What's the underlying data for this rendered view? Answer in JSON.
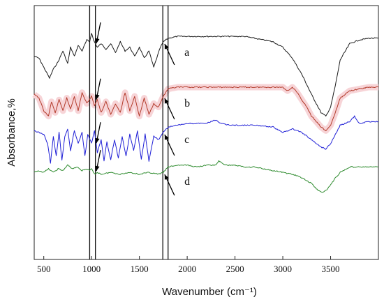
{
  "chart_data": {
    "type": "line",
    "xlabel": "Wavenumber (cm⁻¹)",
    "ylabel": "Absorbance,%",
    "xlim": [
      400,
      4000
    ],
    "x_ticks": [
      500,
      1000,
      1500,
      2000,
      2500,
      3000,
      3500
    ],
    "y_ticks_shown": false,
    "grid": false,
    "legend": "none",
    "reference_lines_x": [
      980,
      1040,
      1745,
      1800
    ],
    "arrow_targets_x": [
      1050,
      1750
    ],
    "series": [
      {
        "label": "a",
        "color": "#1a1a1a",
        "band": null,
        "x": [
          400,
          450,
          500,
          530,
          560,
          600,
          650,
          700,
          750,
          780,
          820,
          860,
          900,
          950,
          980,
          1000,
          1020,
          1040,
          1060,
          1100,
          1150,
          1200,
          1250,
          1300,
          1350,
          1400,
          1450,
          1500,
          1550,
          1600,
          1650,
          1700,
          1720,
          1750,
          1800,
          1900,
          2000,
          2100,
          2200,
          2300,
          2400,
          2500,
          2600,
          2700,
          2800,
          2900,
          3000,
          3100,
          3200,
          3300,
          3400,
          3450,
          3500,
          3550,
          3600,
          3700,
          3800,
          3900,
          4000
        ],
        "y": [
          5.6,
          5.55,
          5.3,
          5.15,
          5.0,
          5.25,
          5.45,
          5.75,
          5.4,
          5.85,
          5.6,
          5.9,
          5.75,
          6.05,
          6.0,
          6.25,
          6.05,
          5.95,
          5.85,
          5.95,
          5.8,
          5.95,
          5.7,
          6.0,
          5.75,
          5.85,
          5.6,
          5.85,
          5.55,
          5.75,
          5.3,
          5.7,
          5.85,
          6.0,
          6.1,
          6.15,
          6.15,
          6.15,
          6.15,
          6.15,
          6.15,
          6.15,
          6.15,
          6.1,
          6.05,
          6.0,
          5.85,
          5.55,
          5.1,
          4.55,
          4.05,
          3.95,
          4.2,
          4.8,
          5.5,
          5.95,
          6.05,
          6.1,
          6.1
        ]
      },
      {
        "label": "b",
        "color": "#b23a2a",
        "band": "#f7d4d7",
        "x": [
          400,
          450,
          500,
          550,
          580,
          620,
          660,
          700,
          740,
          780,
          820,
          860,
          900,
          950,
          1000,
          1030,
          1060,
          1100,
          1150,
          1200,
          1250,
          1300,
          1350,
          1400,
          1450,
          1500,
          1550,
          1600,
          1650,
          1700,
          1750,
          1800,
          1900,
          2000,
          2200,
          2400,
          2600,
          2800,
          2900,
          3000,
          3050,
          3100,
          3150,
          3200,
          3250,
          3300,
          3350,
          3400,
          3450,
          3500,
          3550,
          3600,
          3700,
          3800,
          3900,
          4000
        ],
        "y": [
          4.55,
          4.45,
          4.1,
          3.95,
          4.35,
          4.05,
          4.4,
          4.1,
          4.45,
          4.15,
          4.5,
          4.1,
          4.6,
          4.3,
          4.5,
          4.25,
          4.4,
          4.05,
          4.35,
          4.0,
          4.3,
          4.05,
          4.6,
          4.1,
          4.5,
          3.95,
          4.45,
          4.0,
          4.3,
          4.2,
          4.5,
          4.7,
          4.75,
          4.75,
          4.75,
          4.75,
          4.75,
          4.75,
          4.75,
          4.75,
          4.65,
          4.75,
          4.6,
          4.4,
          4.2,
          3.95,
          3.8,
          3.65,
          3.55,
          3.7,
          4.05,
          4.45,
          4.65,
          4.7,
          4.75,
          4.75
        ]
      },
      {
        "label": "c",
        "color": "#1f1fd6",
        "band": null,
        "x": [
          400,
          450,
          500,
          540,
          570,
          600,
          630,
          660,
          690,
          720,
          750,
          780,
          820,
          860,
          900,
          930,
          960,
          1000,
          1030,
          1060,
          1100,
          1130,
          1160,
          1200,
          1240,
          1280,
          1320,
          1360,
          1400,
          1440,
          1480,
          1520,
          1560,
          1600,
          1650,
          1700,
          1750,
          1800,
          1900,
          2000,
          2100,
          2200,
          2300,
          2350,
          2400,
          2500,
          2600,
          2700,
          2800,
          2900,
          3000,
          3100,
          3200,
          3300,
          3400,
          3450,
          3500,
          3550,
          3600,
          3700,
          3750,
          3800,
          3900,
          4000
        ],
        "y": [
          3.55,
          3.5,
          3.45,
          3.2,
          2.65,
          3.4,
          2.85,
          3.5,
          2.75,
          3.4,
          3.6,
          3.0,
          3.55,
          3.2,
          3.5,
          2.85,
          3.45,
          3.2,
          3.55,
          2.95,
          3.3,
          2.7,
          3.25,
          2.75,
          3.3,
          2.8,
          3.4,
          2.85,
          3.45,
          3.0,
          3.55,
          2.75,
          3.45,
          2.7,
          3.4,
          3.3,
          3.5,
          3.65,
          3.7,
          3.75,
          3.75,
          3.75,
          3.85,
          3.75,
          3.72,
          3.7,
          3.7,
          3.7,
          3.68,
          3.65,
          3.5,
          3.6,
          3.5,
          3.3,
          3.1,
          3.05,
          3.2,
          3.45,
          3.7,
          3.8,
          3.95,
          3.75,
          3.8,
          3.8
        ]
      },
      {
        "label": "d",
        "color": "#2e8b2e",
        "band": null,
        "x": [
          400,
          450,
          500,
          550,
          600,
          650,
          700,
          750,
          800,
          850,
          900,
          950,
          980,
          1000,
          1030,
          1060,
          1100,
          1200,
          1300,
          1400,
          1500,
          1600,
          1700,
          1750,
          1800,
          1900,
          2000,
          2100,
          2200,
          2300,
          2330,
          2400,
          2500,
          2600,
          2700,
          2800,
          2900,
          3000,
          3100,
          3200,
          3300,
          3350,
          3400,
          3450,
          3500,
          3550,
          3600,
          3700,
          3800,
          3900,
          4000
        ],
        "y": [
          2.4,
          2.45,
          2.4,
          2.5,
          2.4,
          2.5,
          2.45,
          2.6,
          2.5,
          2.55,
          2.45,
          2.5,
          2.45,
          2.5,
          2.35,
          2.4,
          2.35,
          2.4,
          2.35,
          2.4,
          2.35,
          2.4,
          2.35,
          2.4,
          2.55,
          2.6,
          2.6,
          2.55,
          2.6,
          2.6,
          2.72,
          2.6,
          2.6,
          2.55,
          2.55,
          2.5,
          2.45,
          2.4,
          2.35,
          2.25,
          2.1,
          1.95,
          1.85,
          1.9,
          2.05,
          2.25,
          2.4,
          2.55,
          2.55,
          2.55,
          2.55
        ]
      }
    ]
  }
}
